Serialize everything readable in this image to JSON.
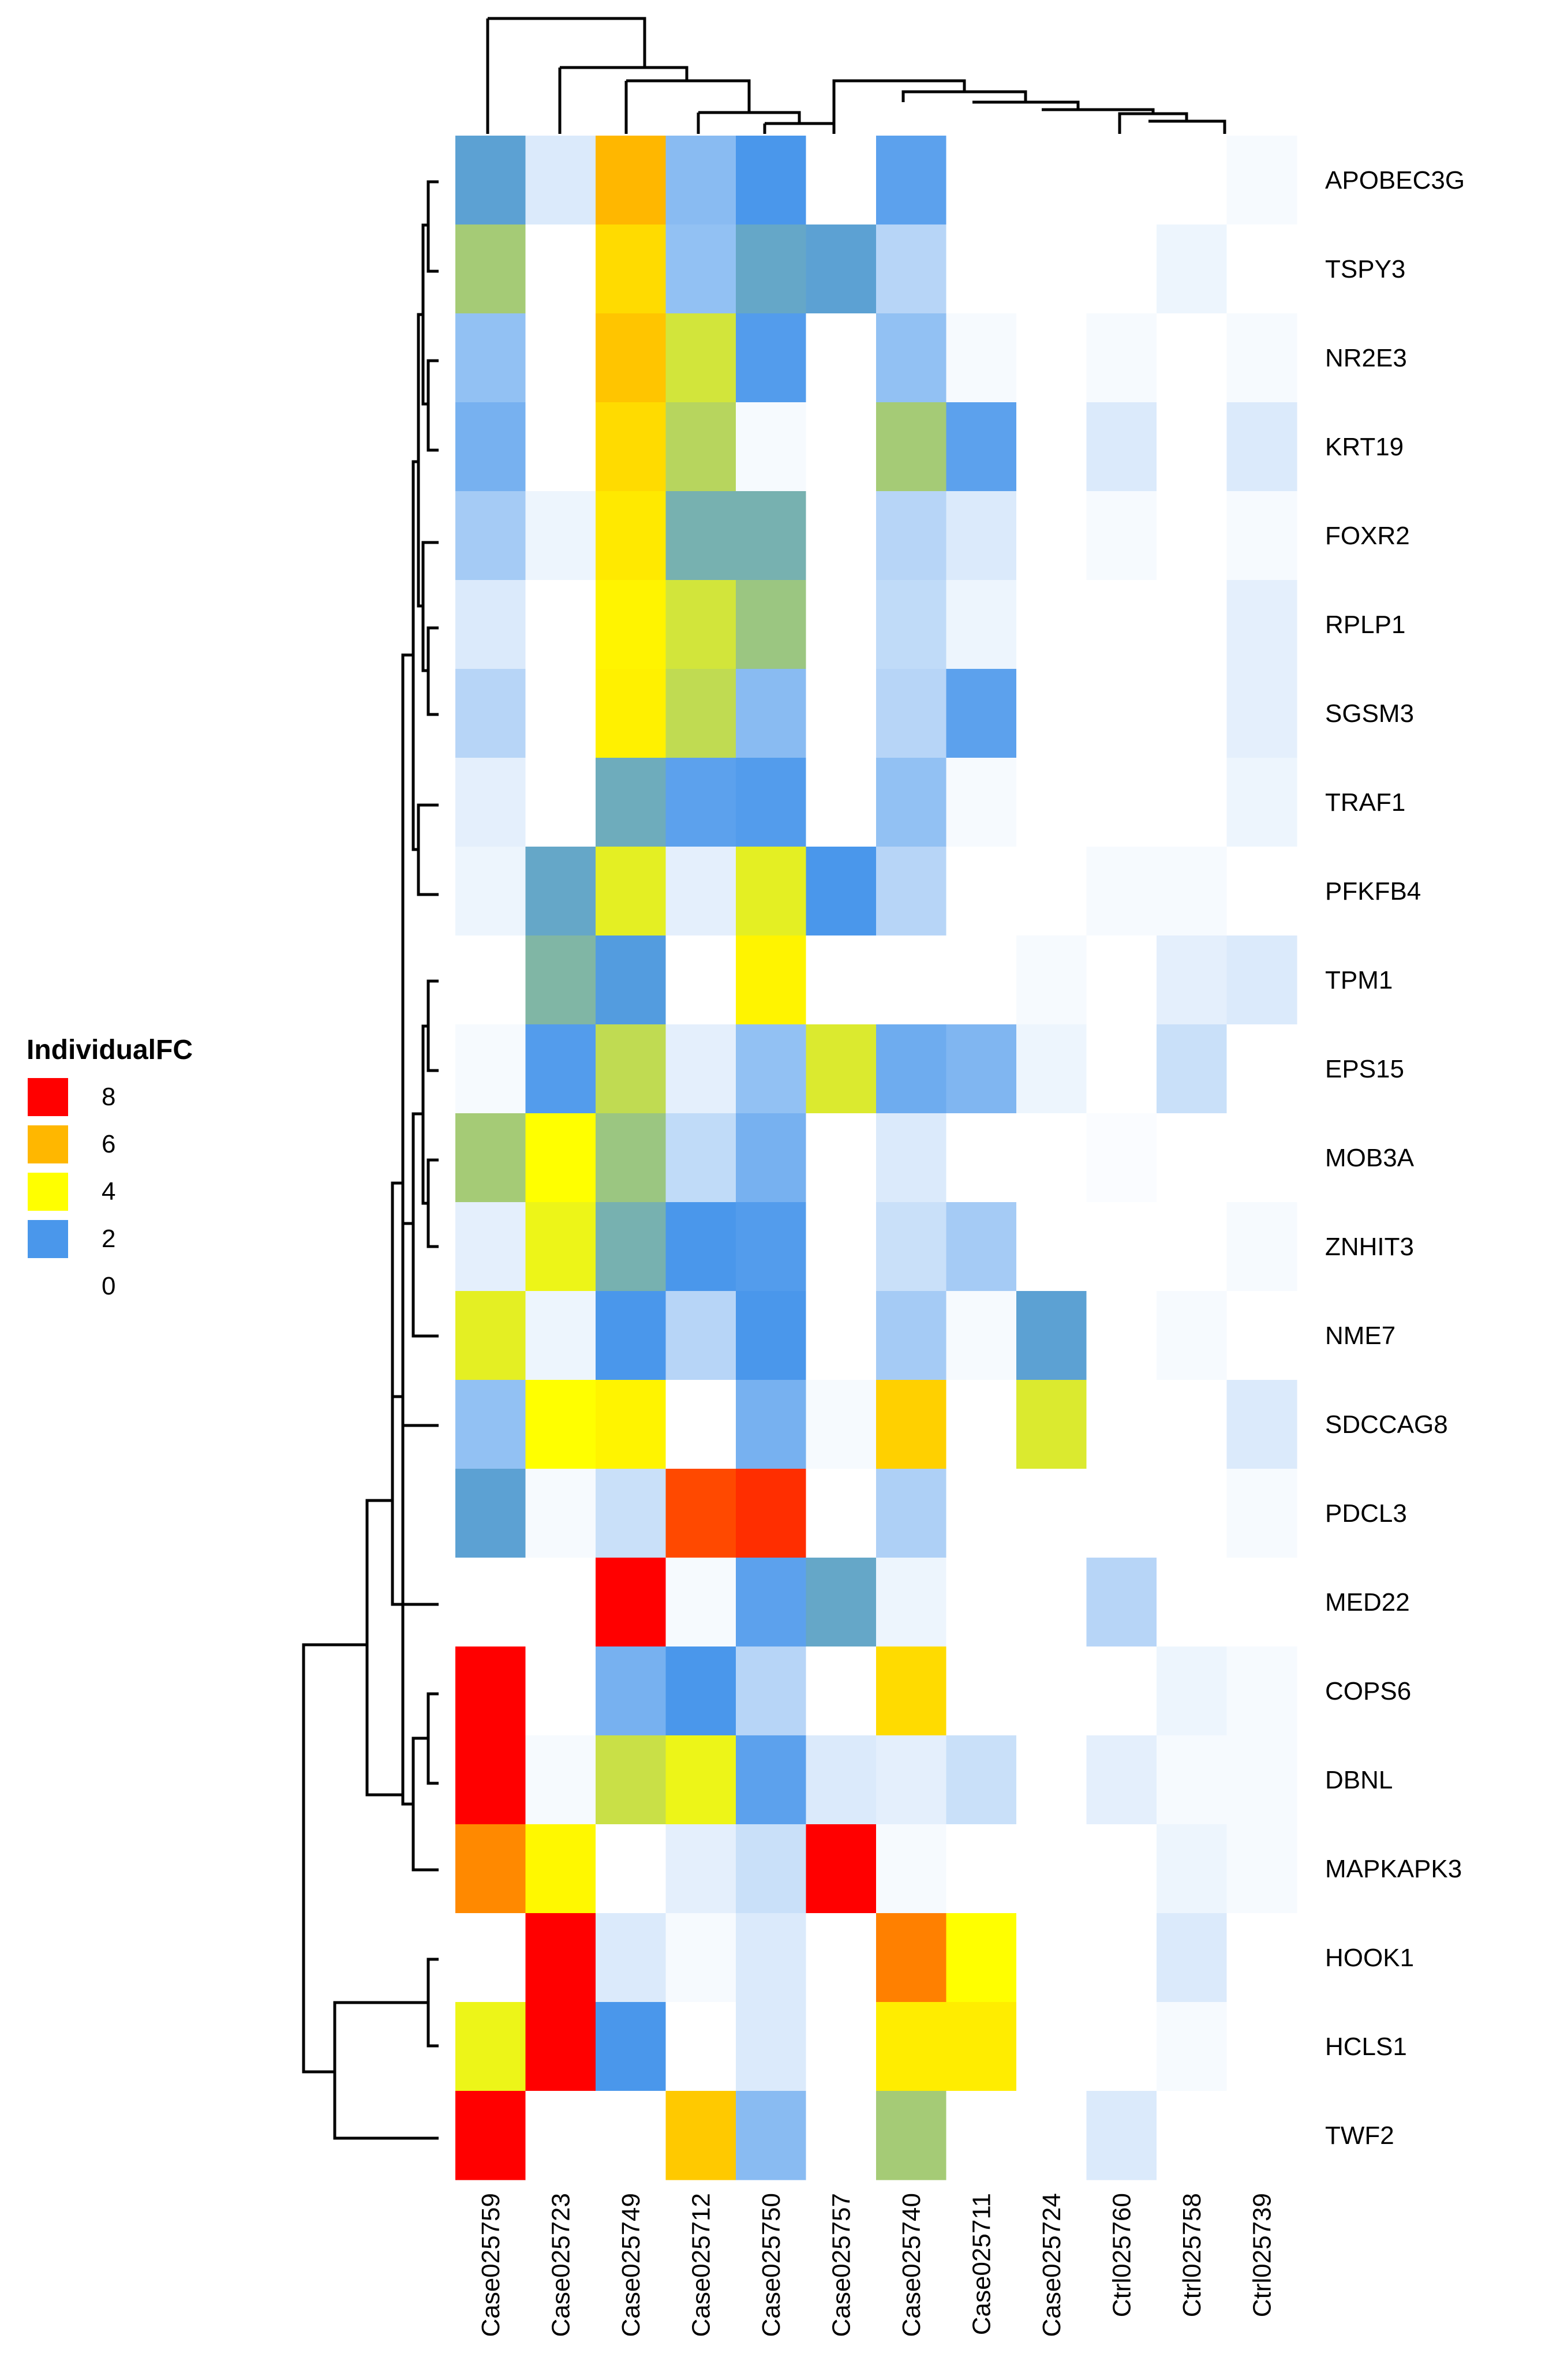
{
  "chart_data": {
    "type": "heatmap",
    "title": "",
    "rows": [
      "APOBEC3G",
      "TSPY3",
      "NR2E3",
      "KRT19",
      "FOXR2",
      "RPLP1",
      "SGSM3",
      "TRAF1",
      "PFKFB4",
      "TPM1",
      "EPS15",
      "MOB3A",
      "ZNHIT3",
      "NME7",
      "SDCCAG8",
      "PDCL3",
      "MED22",
      "COPS6",
      "DBNL",
      "MAPKAPK3",
      "HOOK1",
      "HCLS1",
      "TWF2"
    ],
    "columns": [
      "Case025759",
      "Case025723",
      "Case025749",
      "Case025712",
      "Case025750",
      "Case025757",
      "Case025740",
      "Case025711",
      "Case025724",
      "Ctrl025760",
      "Ctrl025758",
      "Ctrl025739"
    ],
    "values": [
      [
        2.2,
        0.4,
        6.0,
        1.3,
        2.0,
        0.0,
        1.8,
        0.0,
        0.0,
        0.0,
        0.0,
        0.1
      ],
      [
        3.0,
        0.0,
        5.0,
        1.2,
        2.3,
        2.2,
        0.8,
        0.0,
        0.0,
        0.0,
        0.2,
        0.0
      ],
      [
        1.2,
        0.0,
        5.6,
        3.5,
        1.9,
        0.0,
        1.2,
        0.1,
        0.0,
        0.1,
        0.0,
        0.1
      ],
      [
        1.5,
        0.0,
        5.0,
        3.2,
        0.1,
        0.0,
        3.0,
        1.8,
        0.0,
        0.4,
        0.0,
        0.4
      ],
      [
        1.0,
        0.2,
        4.6,
        2.5,
        2.5,
        0.0,
        0.8,
        0.4,
        0.0,
        0.1,
        0.0,
        0.1
      ],
      [
        0.4,
        0.0,
        4.3,
        3.5,
        2.9,
        0.0,
        0.7,
        0.2,
        0.0,
        0.0,
        0.0,
        0.3
      ],
      [
        0.8,
        0.0,
        4.4,
        3.3,
        1.3,
        0.0,
        0.8,
        1.8,
        0.0,
        0.0,
        0.0,
        0.3
      ],
      [
        0.3,
        0.0,
        2.4,
        1.8,
        1.9,
        0.0,
        1.2,
        0.1,
        0.0,
        0.0,
        0.0,
        0.2
      ],
      [
        0.2,
        2.3,
        3.7,
        0.3,
        3.7,
        2.0,
        0.8,
        0.0,
        0.0,
        0.1,
        0.1,
        0.0
      ],
      [
        0.0,
        2.6,
        2.1,
        0.0,
        4.3,
        0.0,
        0.0,
        0.0,
        0.1,
        0.0,
        0.3,
        0.4
      ],
      [
        0.1,
        1.9,
        3.3,
        0.3,
        1.2,
        3.6,
        1.6,
        1.4,
        0.2,
        0.0,
        0.6,
        0.0
      ],
      [
        3.0,
        4.0,
        2.9,
        0.7,
        1.5,
        0.0,
        0.4,
        0.0,
        0.0,
        0.05,
        0.0,
        0.0
      ],
      [
        0.3,
        3.8,
        2.5,
        2.0,
        1.9,
        0.0,
        0.6,
        1.0,
        0.0,
        0.0,
        0.0,
        0.1
      ],
      [
        3.7,
        0.2,
        2.0,
        0.8,
        2.0,
        0.0,
        1.0,
        0.1,
        2.2,
        0.0,
        0.1,
        0.0
      ],
      [
        1.2,
        4.0,
        4.3,
        0.0,
        1.5,
        0.1,
        5.3,
        0.0,
        3.6,
        0.0,
        0.0,
        0.4
      ],
      [
        2.2,
        0.1,
        0.6,
        7.2,
        7.5,
        0.0,
        0.9,
        0.0,
        0.0,
        0.0,
        0.0,
        0.1
      ],
      [
        0.0,
        0.0,
        8.0,
        0.1,
        1.8,
        2.3,
        0.2,
        0.0,
        0.0,
        0.8,
        0.0,
        0.0
      ],
      [
        8.0,
        0.0,
        1.5,
        2.0,
        0.8,
        0.0,
        5.0,
        0.0,
        0.0,
        0.0,
        0.2,
        0.1
      ],
      [
        8.0,
        0.1,
        3.4,
        3.8,
        1.8,
        0.4,
        0.3,
        0.6,
        0.0,
        0.3,
        0.1,
        0.1
      ],
      [
        6.5,
        4.2,
        0.0,
        0.3,
        0.6,
        8.0,
        0.1,
        0.0,
        0.0,
        0.0,
        0.2,
        0.1
      ],
      [
        0.0,
        8.0,
        0.4,
        0.1,
        0.4,
        0.0,
        6.6,
        4.0,
        0.0,
        0.0,
        0.4,
        0.0
      ],
      [
        3.8,
        8.0,
        2.0,
        0.0,
        0.4,
        0.0,
        4.5,
        4.5,
        0.0,
        0.0,
        0.1,
        0.0
      ],
      [
        8.0,
        0.0,
        0.0,
        5.5,
        1.3,
        0.0,
        3.0,
        0.0,
        0.0,
        0.4,
        0.0,
        0.0
      ]
    ],
    "legend": {
      "title": "IndividualFC",
      "ticks": [
        "8",
        "6",
        "4",
        "2",
        "0"
      ],
      "colors": [
        "#ff0000",
        "#ffb700",
        "#ffff00",
        "#4a97eb",
        "#ffffff"
      ],
      "placement": "left"
    },
    "color_scale": [
      {
        "v": 0,
        "c": "#ffffff"
      },
      {
        "v": 2,
        "c": "#4a97eb"
      },
      {
        "v": 4,
        "c": "#ffff00"
      },
      {
        "v": 6,
        "c": "#ffb700"
      },
      {
        "v": 8,
        "c": "#ff0000"
      }
    ],
    "row_dendrogram": true,
    "column_dendrogram": true
  }
}
